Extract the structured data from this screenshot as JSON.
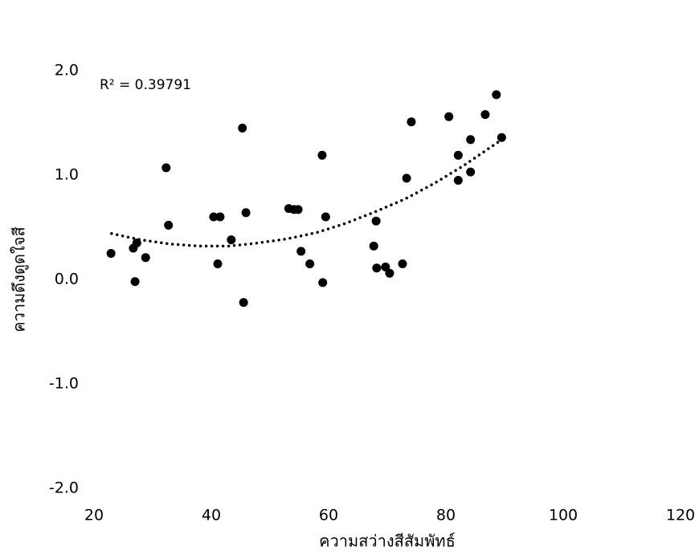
{
  "chart_data": {
    "type": "scatter",
    "x_label": "ความสว่างสีสัมพัทธ์",
    "y_label": "ความดึงดูดใจสี",
    "annotation": "R² = 0.39791",
    "color": "#000000",
    "xlim": [
      20,
      120
    ],
    "xticks": [
      20,
      40,
      60,
      80,
      100,
      120
    ],
    "ylim": [
      -2,
      2
    ],
    "yticks": [
      {
        "value": -2,
        "label": "-2.0"
      },
      {
        "value": -1,
        "label": "-1.0"
      },
      {
        "value": 0,
        "label": "0.0"
      },
      {
        "value": 1,
        "label": "1.0"
      },
      {
        "value": 2,
        "label": "2.0"
      }
    ],
    "x": [
      22.9,
      26.7,
      27.3,
      27.0,
      28.8,
      32.3,
      32.7,
      40.4,
      41.5,
      41.1,
      43.4,
      45.3,
      45.9,
      45.5,
      53.2,
      54.1,
      54.8,
      55.3,
      56.8,
      58.9,
      59.5,
      59.0,
      68.1,
      67.7,
      68.2,
      69.7,
      70.4,
      72.6,
      73.3,
      74.1,
      80.5,
      82.1,
      82.1,
      84.2,
      84.2,
      86.7,
      88.6,
      89.5
    ],
    "values": [
      0.25,
      0.3,
      0.35,
      -0.02,
      0.21,
      1.07,
      0.52,
      0.6,
      0.6,
      0.15,
      0.38,
      1.45,
      0.64,
      -0.22,
      0.68,
      0.67,
      0.67,
      0.27,
      0.15,
      1.19,
      0.6,
      -0.03,
      0.56,
      0.32,
      0.11,
      0.12,
      0.06,
      0.15,
      0.97,
      1.51,
      1.56,
      1.19,
      0.95,
      1.34,
      1.03,
      1.58,
      1.77,
      1.36
    ],
    "trendline": {
      "x": [
        23,
        28,
        33,
        38,
        43,
        48,
        53,
        58,
        63,
        68,
        73,
        78,
        83,
        89
      ],
      "values": [
        0.44,
        0.38,
        0.34,
        0.32,
        0.32,
        0.35,
        0.39,
        0.45,
        0.54,
        0.65,
        0.77,
        0.92,
        1.09,
        1.32
      ]
    }
  }
}
